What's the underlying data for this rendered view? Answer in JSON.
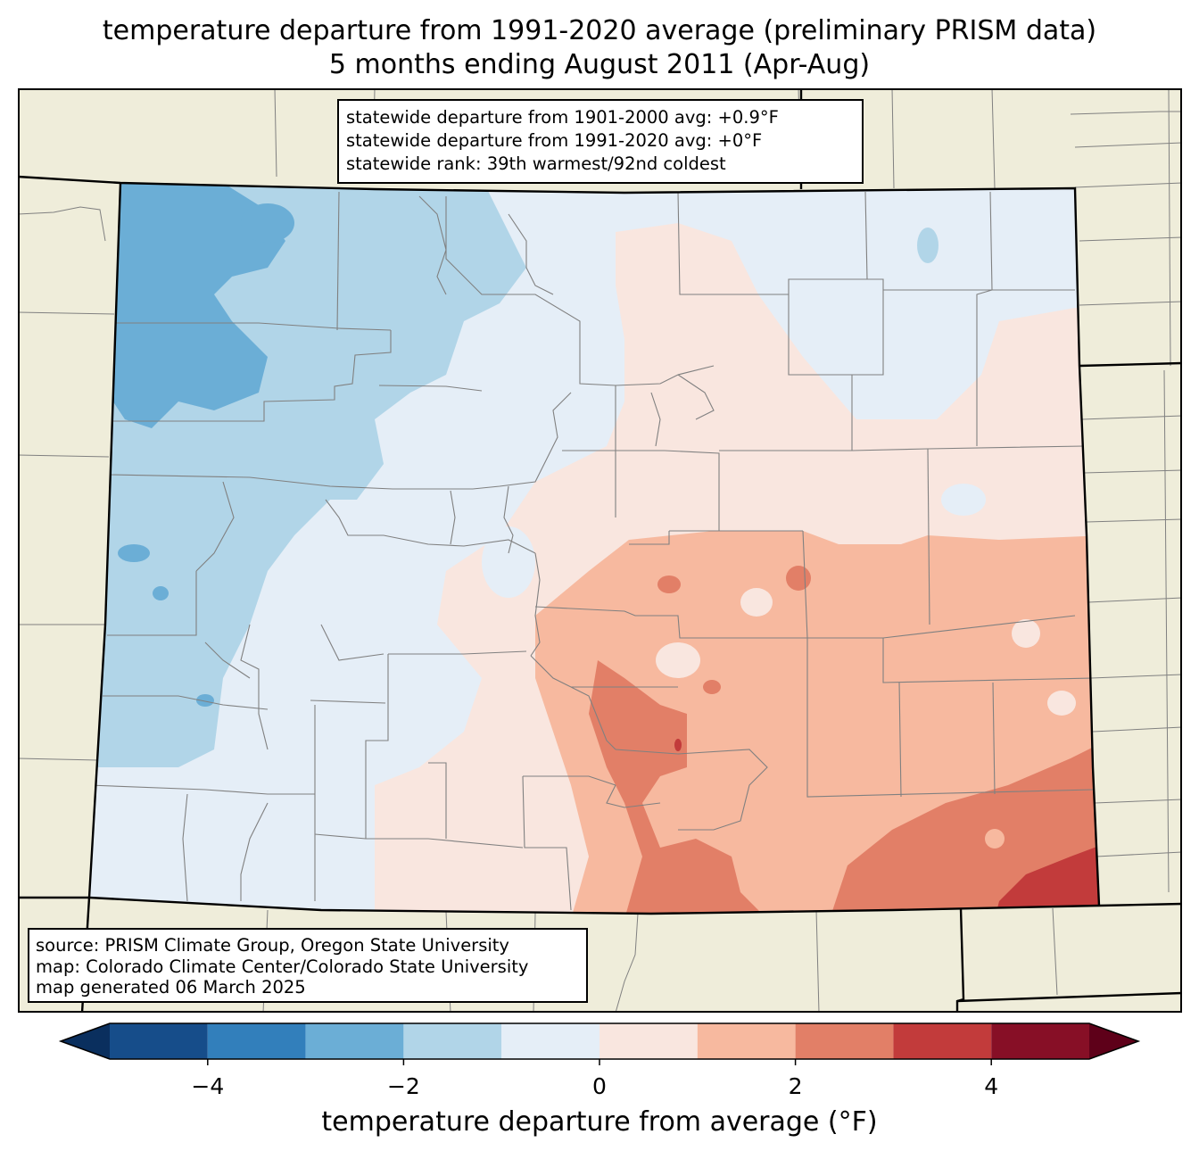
{
  "title": {
    "line1": "temperature departure from 1991-2020 average (preliminary PRISM data)",
    "line2": "5 months ending August 2011 (Apr-Aug)"
  },
  "stats_box": {
    "line1": "statewide departure from 1901-2000 avg: +0.9°F",
    "line2": "statewide departure from 1991-2020 avg: +0°F",
    "line3": "statewide rank: 39th warmest/92nd coldest"
  },
  "source_box": {
    "line1": "source: PRISM Climate Group, Oregon State University",
    "line2": "map: Colorado Climate Center/Colorado State University",
    "line3": "map generated 06 March 2025"
  },
  "colorbar": {
    "label": "temperature departure from average (°F)",
    "min": -5,
    "max": 5,
    "ticks": [
      {
        "value": -4,
        "label": "−4"
      },
      {
        "value": -2,
        "label": "−2"
      },
      {
        "value": 0,
        "label": "0"
      },
      {
        "value": 2,
        "label": "2"
      },
      {
        "value": 4,
        "label": "4"
      }
    ],
    "bins": [
      {
        "from": -5,
        "to": -4,
        "color": "#164d8a"
      },
      {
        "from": -4,
        "to": -3,
        "color": "#327fbb"
      },
      {
        "from": -3,
        "to": -2,
        "color": "#6baed6"
      },
      {
        "from": -2,
        "to": -1,
        "color": "#b1d5e8"
      },
      {
        "from": -1,
        "to": 0,
        "color": "#e5eef7"
      },
      {
        "from": 0,
        "to": 1,
        "color": "#f9e6df"
      },
      {
        "from": 1,
        "to": 2,
        "color": "#f7b99f"
      },
      {
        "from": 2,
        "to": 3,
        "color": "#e27f67"
      },
      {
        "from": 3,
        "to": 4,
        "color": "#c23b3b"
      },
      {
        "from": 4,
        "to": 5,
        "color": "#870f26"
      }
    ],
    "under_color": "#0a2f5e",
    "over_color": "#5e0019"
  },
  "map": {
    "background_color": "#efedda",
    "state_border_color": "#000000",
    "county_line_color": "#808080"
  }
}
